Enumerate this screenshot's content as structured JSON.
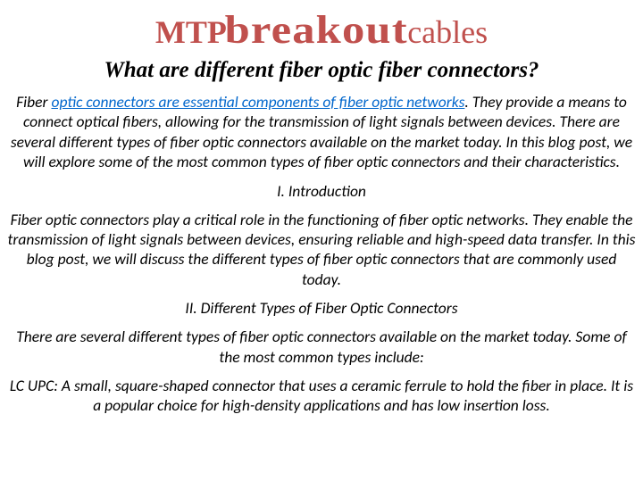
{
  "title": {
    "part1": "MTP ",
    "part2": "breakout",
    "part3": " cables"
  },
  "subtitle": "What are different fiber optic fiber connectors?",
  "para1_prefix": "Fiber ",
  "para1_link": "optic connectors are essential components of fiber optic networks",
  "para1_rest": ". They provide a means to connect optical fibers, allowing for the transmission of light signals between devices. There are several different types of fiber optic connectors available on the market today. In this blog post, we will explore some of the most common types of fiber optic connectors and their characteristics.",
  "section1": "I. Introduction",
  "para2": "Fiber optic connectors play a critical role in the functioning of fiber optic networks. They enable the transmission of light signals between devices, ensuring reliable and high-speed data transfer. In this blog post, we will discuss the different types of fiber optic connectors that are commonly used today.",
  "section2": "II. Different Types of Fiber Optic Connectors",
  "para3": "There are several different types of fiber optic connectors available on the market today. Some of the most common types include:",
  "para4": "LC UPC: A small, square-shaped connector that uses a ceramic ferrule to hold the fiber in place. It is a popular choice for high-density applications and has low insertion loss.",
  "colors": {
    "title_color": "#c0504d",
    "text_color": "#000000",
    "link_color": "#0066cc",
    "background": "#ffffff"
  }
}
